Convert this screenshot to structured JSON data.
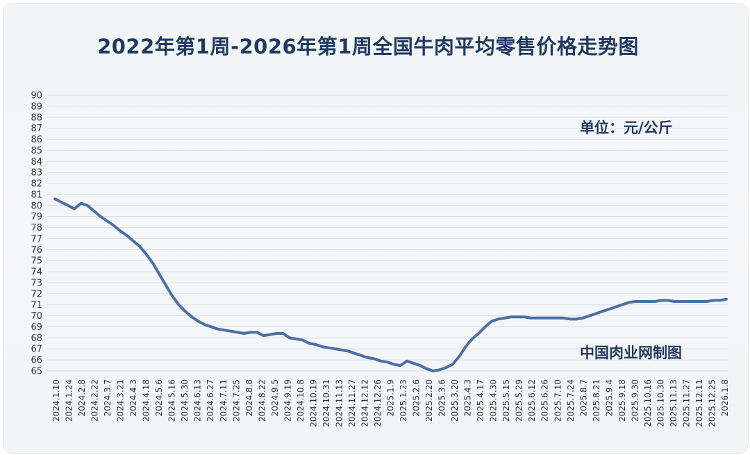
{
  "chart_data": {
    "type": "line",
    "title": "2022年第1周-2026年第1周全国牛肉平均零售价格走势图",
    "unit_label": "单位：元/公斤",
    "source_label": "中国肉业网制图",
    "ylim": [
      65,
      90
    ],
    "yticks": [
      65,
      66,
      67,
      68,
      69,
      70,
      71,
      72,
      73,
      74,
      75,
      76,
      77,
      78,
      79,
      80,
      81,
      82,
      83,
      84,
      85,
      86,
      87,
      88,
      89,
      90
    ],
    "grid": true,
    "line_color": "#4a6fa5",
    "xtick_labels": [
      "2024.1.10",
      "2024.1.24",
      "2024.2.8",
      "2024.2.22",
      "2024.3.7",
      "2024.3.21",
      "2024.4.3",
      "2024.4.18",
      "2024.5.6",
      "2024.5.16",
      "2024.5.30",
      "2024.6.13",
      "2024.6.27",
      "2024.7.11",
      "2024.7.25",
      "2024.8.8",
      "2024.8.22",
      "2024.9.5",
      "2024.9.19",
      "2024.10.8",
      "2024.10.19",
      "2024.10.31",
      "2024.11.13",
      "2024.11.27",
      "2024.12.12",
      "2024.12.26",
      "2025.1.9",
      "2025.1.23",
      "2025.2.6",
      "2025.2.20",
      "2025.3.6",
      "2025.3.20",
      "2025.4.3",
      "2025.4.17",
      "2025.4.30",
      "2025.5.15",
      "2025.5.29",
      "2025.6.12",
      "2025.6.26",
      "2025.7.10",
      "2025.7.24",
      "2025.8.7",
      "2025.8.21",
      "2025.9.4",
      "2025.9.18",
      "2025.9.30",
      "2025.10.16",
      "2025.10.30",
      "2025.11.13",
      "2025.11.27",
      "2025.12.11",
      "2025.12.25",
      "2026.1.8"
    ],
    "values": [
      80.6,
      80.3,
      80.0,
      79.7,
      80.2,
      80.0,
      79.5,
      79.0,
      78.6,
      78.2,
      77.7,
      77.3,
      76.8,
      76.3,
      75.6,
      74.8,
      73.8,
      72.8,
      71.8,
      71.0,
      70.4,
      69.9,
      69.5,
      69.2,
      69.0,
      68.8,
      68.7,
      68.6,
      68.5,
      68.4,
      68.5,
      68.5,
      68.2,
      68.3,
      68.4,
      68.4,
      68.0,
      67.9,
      67.8,
      67.5,
      67.4,
      67.2,
      67.1,
      67.0,
      66.9,
      66.8,
      66.6,
      66.4,
      66.2,
      66.1,
      65.9,
      65.8,
      65.6,
      65.5,
      65.9,
      65.7,
      65.5,
      65.2,
      65.0,
      65.1,
      65.3,
      65.6,
      66.3,
      67.2,
      67.9,
      68.4,
      69.0,
      69.5,
      69.7,
      69.8,
      69.9,
      69.9,
      69.9,
      69.8,
      69.8,
      69.8,
      69.8,
      69.8,
      69.8,
      69.7,
      69.7,
      69.8,
      70.0,
      70.2,
      70.4,
      70.6,
      70.8,
      71.0,
      71.2,
      71.3,
      71.3,
      71.3,
      71.3,
      71.4,
      71.4,
      71.3,
      71.3,
      71.3,
      71.3,
      71.3,
      71.3,
      71.4,
      71.4,
      71.5
    ]
  }
}
